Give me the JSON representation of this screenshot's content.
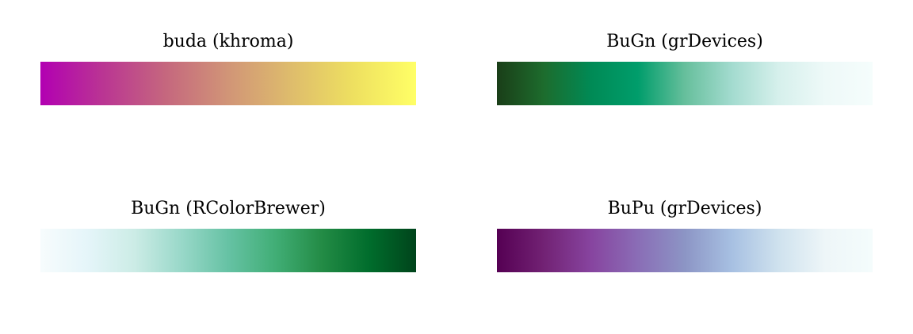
{
  "chart_data": [
    {
      "type": "other",
      "title": "buda (khroma)",
      "colors": [
        "#B200B2",
        "#BA3593",
        "#C5677E",
        "#D19577",
        "#DEBC6C",
        "#EEE060",
        "#FFFF66"
      ]
    },
    {
      "type": "other",
      "title": "BuGn (grDevices)",
      "colors": [
        "#1A3E18",
        "#1D6C2D",
        "#008A55",
        "#009D6B",
        "#66BF9C",
        "#A3DBCF",
        "#D6F0EC",
        "#EEF9F8",
        "#F5FDFC"
      ]
    },
    {
      "type": "other",
      "title": "BuGn (RColorBrewer)",
      "colors": [
        "#F7FCFD",
        "#E5F5F9",
        "#CCECE6",
        "#99D8C9",
        "#66C2A4",
        "#41AE76",
        "#238B45",
        "#006D2C",
        "#00441B"
      ]
    },
    {
      "type": "other",
      "title": "BuPu (grDevices)",
      "colors": [
        "#550053",
        "#722274",
        "#87449F",
        "#8A6DB6",
        "#8C95C5",
        "#A7C0E2",
        "#CFE2EE",
        "#EEF6F8",
        "#F4FCFC"
      ]
    }
  ]
}
